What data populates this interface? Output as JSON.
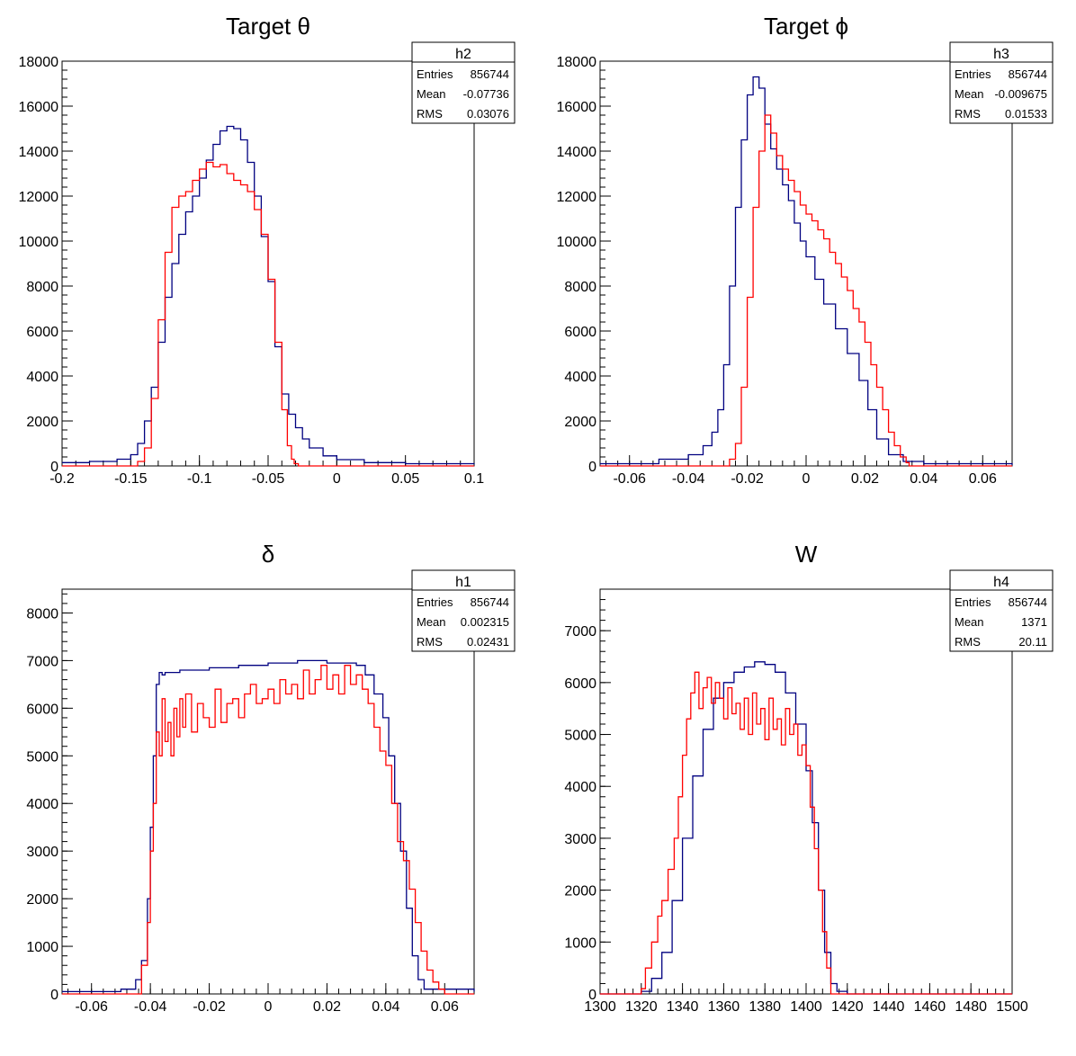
{
  "colors": {
    "blue": "#000080",
    "red": "#ff0000",
    "axis": "#000000"
  },
  "chart_data": [
    {
      "type": "histogram",
      "title": "Target θ",
      "hist_name": "h2",
      "stats": {
        "labels": [
          "Entries",
          "Mean",
          "RMS"
        ],
        "values": [
          "856744",
          "-0.07736",
          "0.03076"
        ]
      },
      "xlim": [
        -0.2,
        0.1
      ],
      "ylim": [
        0,
        18000
      ],
      "xticks": [
        -0.2,
        -0.15,
        -0.1,
        -0.05,
        0,
        0.05,
        0.1
      ],
      "xtick_labels": [
        "-0.2",
        "-0.15",
        "-0.1",
        "-0.05",
        "0",
        "0.05",
        "0.1"
      ],
      "yticks": [
        0,
        2000,
        4000,
        6000,
        8000,
        10000,
        12000,
        14000,
        16000,
        18000
      ],
      "ytick_labels": [
        "0",
        "2000",
        "4000",
        "6000",
        "8000",
        "10000",
        "12000",
        "14000",
        "16000",
        "18000"
      ],
      "series": [
        {
          "color": "blue",
          "x": [
            -0.2,
            -0.18,
            -0.16,
            -0.15,
            -0.145,
            -0.14,
            -0.135,
            -0.13,
            -0.125,
            -0.12,
            -0.115,
            -0.11,
            -0.105,
            -0.1,
            -0.095,
            -0.09,
            -0.085,
            -0.08,
            -0.075,
            -0.07,
            -0.065,
            -0.06,
            -0.055,
            -0.05,
            -0.045,
            -0.04,
            -0.035,
            -0.03,
            -0.025,
            -0.02,
            -0.01,
            0,
            0.02,
            0.05,
            0.1
          ],
          "y": [
            150,
            200,
            300,
            500,
            1000,
            2000,
            3500,
            5500,
            7500,
            9000,
            10300,
            11300,
            12000,
            12800,
            13600,
            14300,
            14900,
            15100,
            15000,
            14500,
            13500,
            12000,
            10200,
            8200,
            5300,
            3200,
            2300,
            1700,
            1200,
            800,
            450,
            280,
            150,
            100,
            80
          ]
        },
        {
          "color": "red",
          "x": [
            -0.2,
            -0.15,
            -0.145,
            -0.14,
            -0.135,
            -0.13,
            -0.125,
            -0.12,
            -0.115,
            -0.11,
            -0.105,
            -0.1,
            -0.095,
            -0.09,
            -0.085,
            -0.08,
            -0.075,
            -0.07,
            -0.065,
            -0.06,
            -0.055,
            -0.05,
            -0.045,
            -0.04,
            -0.036,
            -0.033,
            -0.031,
            -0.028,
            0,
            0.05,
            0.1
          ],
          "y": [
            0,
            0,
            200,
            800,
            3000,
            6500,
            9500,
            11500,
            12000,
            12200,
            12700,
            13200,
            13500,
            13300,
            13400,
            13000,
            12700,
            12500,
            12200,
            11400,
            10300,
            8300,
            5500,
            2500,
            900,
            300,
            100,
            0,
            0,
            0,
            0
          ]
        }
      ]
    },
    {
      "type": "histogram",
      "title": "Target ϕ",
      "hist_name": "h3",
      "stats": {
        "labels": [
          "Entries",
          "Mean",
          "RMS"
        ],
        "values": [
          "856744",
          "-0.009675",
          "0.01533"
        ]
      },
      "xlim": [
        -0.07,
        0.07
      ],
      "ylim": [
        0,
        18000
      ],
      "xticks": [
        -0.06,
        -0.04,
        -0.02,
        0,
        0.02,
        0.04,
        0.06
      ],
      "xtick_labels": [
        "-0.06",
        "-0.04",
        "-0.02",
        "0",
        "0.02",
        "0.04",
        "0.06"
      ],
      "yticks": [
        0,
        2000,
        4000,
        6000,
        8000,
        10000,
        12000,
        14000,
        16000,
        18000
      ],
      "ytick_labels": [
        "0",
        "2000",
        "4000",
        "6000",
        "8000",
        "10000",
        "12000",
        "14000",
        "16000",
        "18000"
      ],
      "series": [
        {
          "color": "blue",
          "x": [
            -0.07,
            -0.05,
            -0.04,
            -0.035,
            -0.032,
            -0.03,
            -0.028,
            -0.026,
            -0.024,
            -0.022,
            -0.02,
            -0.018,
            -0.016,
            -0.014,
            -0.012,
            -0.01,
            -0.008,
            -0.006,
            -0.004,
            -0.002,
            0,
            0.003,
            0.006,
            0.01,
            0.014,
            0.018,
            0.021,
            0.024,
            0.028,
            0.033,
            0.04,
            0.07
          ],
          "y": [
            100,
            300,
            500,
            900,
            1500,
            2500,
            4500,
            8000,
            11500,
            14500,
            16500,
            17300,
            16800,
            15200,
            14100,
            13200,
            12500,
            11800,
            10800,
            10000,
            9300,
            8300,
            7200,
            6100,
            5000,
            3800,
            2500,
            1200,
            500,
            200,
            100,
            50
          ]
        },
        {
          "color": "red",
          "x": [
            -0.07,
            -0.028,
            -0.026,
            -0.024,
            -0.022,
            -0.02,
            -0.018,
            -0.016,
            -0.014,
            -0.012,
            -0.01,
            -0.008,
            -0.006,
            -0.004,
            -0.002,
            0,
            0.002,
            0.004,
            0.006,
            0.008,
            0.01,
            0.012,
            0.014,
            0.016,
            0.018,
            0.02,
            0.022,
            0.024,
            0.026,
            0.028,
            0.03,
            0.032,
            0.034,
            0.035,
            0.07
          ],
          "y": [
            0,
            0,
            300,
            1000,
            3500,
            7500,
            11500,
            14000,
            15600,
            14800,
            13800,
            13200,
            12700,
            12200,
            11600,
            11200,
            10900,
            10500,
            10100,
            9500,
            9000,
            8400,
            7800,
            7000,
            6400,
            5500,
            4500,
            3500,
            2500,
            1500,
            900,
            400,
            150,
            0,
            0
          ]
        }
      ]
    },
    {
      "type": "histogram",
      "title": "δ",
      "hist_name": "h1",
      "stats": {
        "labels": [
          "Entries",
          "Mean",
          "RMS"
        ],
        "values": [
          "856744",
          "0.002315",
          "0.02431"
        ]
      },
      "xlim": [
        -0.07,
        0.07
      ],
      "ylim": [
        0,
        8500
      ],
      "xticks": [
        -0.06,
        -0.04,
        -0.02,
        0,
        0.02,
        0.04,
        0.06
      ],
      "xtick_labels": [
        "-0.06",
        "-0.04",
        "-0.02",
        "0",
        "0.02",
        "0.04",
        "0.06"
      ],
      "yticks": [
        0,
        1000,
        2000,
        3000,
        4000,
        5000,
        6000,
        7000,
        8000
      ],
      "ytick_labels": [
        "0",
        "1000",
        "2000",
        "3000",
        "4000",
        "5000",
        "6000",
        "7000",
        "8000"
      ],
      "series": [
        {
          "color": "blue",
          "x": [
            -0.07,
            -0.05,
            -0.045,
            -0.043,
            -0.041,
            -0.04,
            -0.039,
            -0.038,
            -0.037,
            -0.036,
            -0.035,
            -0.03,
            -0.02,
            -0.01,
            0,
            0.01,
            0.02,
            0.03,
            0.033,
            0.036,
            0.039,
            0.041,
            0.043,
            0.045,
            0.047,
            0.049,
            0.051,
            0.053,
            0.07
          ],
          "y": [
            50,
            100,
            300,
            700,
            2000,
            3500,
            5000,
            6500,
            6750,
            6700,
            6750,
            6800,
            6850,
            6900,
            6950,
            7000,
            6950,
            6900,
            6700,
            6300,
            5800,
            5000,
            4000,
            3000,
            1800,
            800,
            300,
            100,
            50
          ]
        },
        {
          "color": "red",
          "x": [
            -0.07,
            -0.045,
            -0.043,
            -0.041,
            -0.04,
            -0.039,
            -0.038,
            -0.037,
            -0.036,
            -0.035,
            -0.034,
            -0.033,
            -0.032,
            -0.031,
            -0.03,
            -0.029,
            -0.028,
            -0.026,
            -0.024,
            -0.022,
            -0.02,
            -0.018,
            -0.016,
            -0.014,
            -0.012,
            -0.01,
            -0.008,
            -0.006,
            -0.004,
            -0.002,
            0,
            0.002,
            0.004,
            0.006,
            0.008,
            0.01,
            0.012,
            0.014,
            0.016,
            0.018,
            0.02,
            0.022,
            0.024,
            0.026,
            0.028,
            0.03,
            0.032,
            0.034,
            0.036,
            0.038,
            0.04,
            0.042,
            0.044,
            0.046,
            0.048,
            0.05,
            0.052,
            0.054,
            0.056,
            0.058,
            0.06,
            0.07
          ],
          "y": [
            0,
            0,
            600,
            1500,
            3000,
            4000,
            5500,
            5000,
            6200,
            5300,
            5700,
            5000,
            6000,
            5400,
            6200,
            5600,
            6300,
            5500,
            6100,
            5800,
            5600,
            6400,
            5700,
            6100,
            6200,
            5800,
            6300,
            6500,
            6100,
            6200,
            6400,
            6100,
            6600,
            6300,
            6500,
            6200,
            6800,
            6300,
            6600,
            6900,
            6400,
            6700,
            6300,
            6900,
            6500,
            6700,
            6400,
            6100,
            5600,
            5100,
            4800,
            4000,
            3200,
            2800,
            2200,
            1500,
            900,
            500,
            250,
            100,
            0,
            0
          ]
        }
      ]
    },
    {
      "type": "histogram",
      "title": "W",
      "hist_name": "h4",
      "stats": {
        "labels": [
          "Entries",
          "Mean",
          "RMS"
        ],
        "values": [
          "856744",
          "1371",
          "20.11"
        ]
      },
      "xlim": [
        1300,
        1500
      ],
      "ylim": [
        0,
        7800
      ],
      "xticks": [
        1300,
        1320,
        1340,
        1360,
        1380,
        1400,
        1420,
        1440,
        1460,
        1480,
        1500
      ],
      "xtick_labels": [
        "1300",
        "1320",
        "1340",
        "1360",
        "1380",
        "1400",
        "1420",
        "1440",
        "1460",
        "1480",
        "1500"
      ],
      "yticks": [
        0,
        1000,
        2000,
        3000,
        4000,
        5000,
        6000,
        7000
      ],
      "ytick_labels": [
        "0",
        "1000",
        "2000",
        "3000",
        "4000",
        "5000",
        "6000",
        "7000"
      ],
      "series": [
        {
          "color": "blue",
          "x": [
            1300,
            1320,
            1325,
            1330,
            1335,
            1340,
            1345,
            1350,
            1355,
            1360,
            1365,
            1370,
            1375,
            1380,
            1385,
            1390,
            1395,
            1400,
            1403,
            1406,
            1409,
            1412,
            1415,
            1420,
            1500
          ],
          "y": [
            0,
            50,
            300,
            800,
            1800,
            3000,
            4200,
            5100,
            5700,
            6000,
            6200,
            6300,
            6400,
            6350,
            6200,
            5800,
            5200,
            4300,
            3300,
            2000,
            800,
            200,
            50,
            0,
            0
          ]
        },
        {
          "color": "red",
          "x": [
            1300,
            1320,
            1322,
            1325,
            1328,
            1330,
            1333,
            1336,
            1338,
            1340,
            1342,
            1344,
            1346,
            1348,
            1350,
            1352,
            1354,
            1356,
            1358,
            1360,
            1362,
            1364,
            1366,
            1368,
            1370,
            1372,
            1374,
            1376,
            1378,
            1380,
            1382,
            1384,
            1386,
            1388,
            1390,
            1392,
            1394,
            1396,
            1398,
            1400,
            1402,
            1404,
            1406,
            1408,
            1410,
            1412,
            1500
          ],
          "y": [
            0,
            100,
            500,
            1000,
            1500,
            1800,
            2400,
            3000,
            3800,
            4600,
            5300,
            5800,
            6200,
            5500,
            5900,
            6100,
            5600,
            6000,
            5700,
            5300,
            5900,
            5400,
            5600,
            5100,
            5700,
            5000,
            5800,
            5200,
            5500,
            4900,
            5700,
            5100,
            5300,
            4800,
            5500,
            5000,
            5200,
            4600,
            4800,
            4400,
            3600,
            2800,
            2000,
            1200,
            500,
            0,
            0
          ]
        }
      ]
    }
  ]
}
